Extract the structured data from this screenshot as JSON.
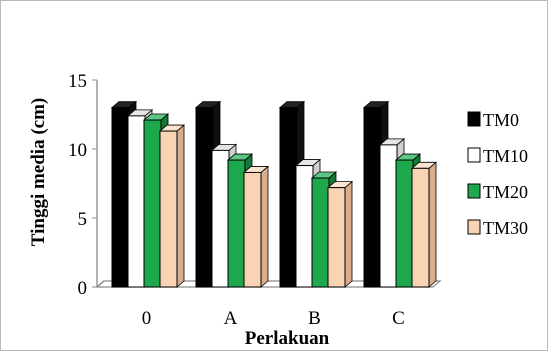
{
  "chart_data": {
    "type": "bar",
    "title": "",
    "xlabel": "Perlakuan",
    "ylabel": "Tinggi media (cm)",
    "ylim": [
      0,
      15
    ],
    "yticks": [
      "0",
      "5",
      "10",
      "15"
    ],
    "categories": [
      "0",
      "A",
      "B",
      "C"
    ],
    "series": [
      {
        "name": "TM0",
        "values": [
          13.0,
          13.0,
          13.0,
          13.0
        ]
      },
      {
        "name": "TM10",
        "values": [
          12.4,
          9.9,
          8.8,
          10.3
        ]
      },
      {
        "name": "TM20",
        "values": [
          12.1,
          9.2,
          7.9,
          9.2
        ]
      },
      {
        "name": "TM30",
        "values": [
          11.3,
          8.3,
          7.2,
          8.6
        ]
      }
    ],
    "colors": {
      "TM0": [
        "#000000",
        "#222222",
        "#111111"
      ],
      "TM10": [
        "#ffffff",
        "#e6e6e6",
        "#cfcfcf"
      ],
      "TM20": [
        "#1ea84e",
        "#5cc784",
        "#117a37"
      ],
      "TM30": [
        "#f8d3b4",
        "#fce4cf",
        "#d9ad8c"
      ]
    },
    "grid": false,
    "legend_position": "right"
  }
}
